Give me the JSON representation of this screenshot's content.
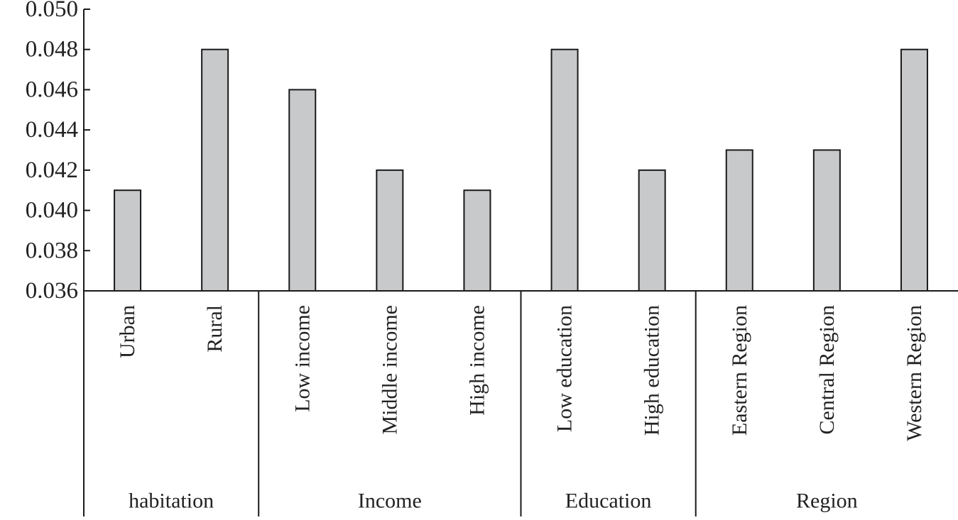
{
  "chart_data": {
    "type": "bar",
    "title": "",
    "xlabel": "",
    "ylabel": "",
    "ylim": [
      0.036,
      0.05
    ],
    "yticks": [
      "0.036",
      "0.038",
      "0.040",
      "0.042",
      "0.044",
      "0.046",
      "0.048",
      "0.050"
    ],
    "grid": false,
    "legend": "none",
    "bar_color": "#c8c9cb",
    "bar_edge_color": "#1a1a1a",
    "categories": [
      "Urban",
      "Rural",
      "Low income",
      "Middle income",
      "High income",
      "Low education",
      "High education",
      "Eastern Region",
      "Central Region",
      "Western Region"
    ],
    "values": [
      0.041,
      0.048,
      0.046,
      0.042,
      0.041,
      0.048,
      0.042,
      0.043,
      0.043,
      0.048
    ],
    "groups": [
      {
        "label": "habitation",
        "count": 2
      },
      {
        "label": "Income",
        "count": 3
      },
      {
        "label": "Education",
        "count": 2
      },
      {
        "label": "Region",
        "count": 3
      }
    ]
  }
}
